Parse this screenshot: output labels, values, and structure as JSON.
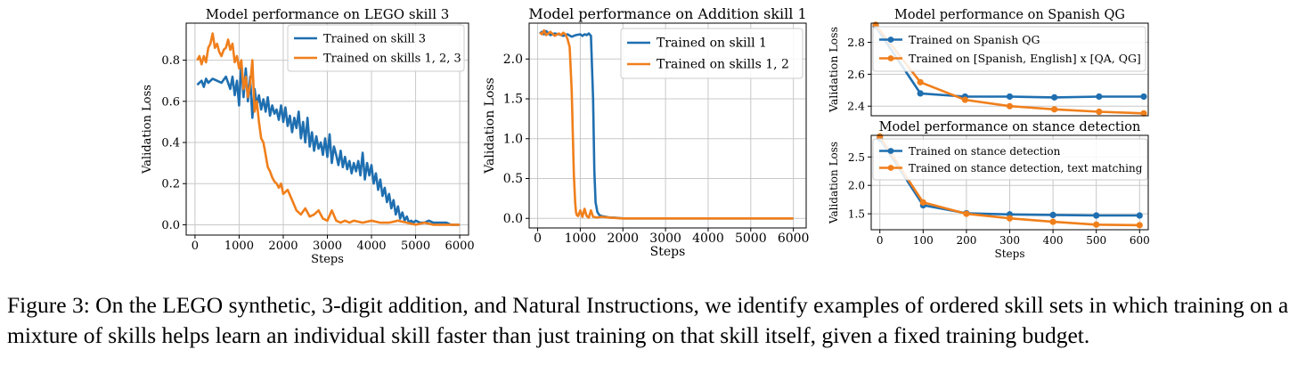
{
  "colors": {
    "blue": "#1f6fb0",
    "orange": "#f07f1b",
    "grid": "#c8c8c8"
  },
  "caption": "Figure 3: On the LEGO synthetic, 3-digit addition, and Natural Instructions, we identify examples of ordered skill sets in which training on a mixture of skills helps learn an individual skill faster than just training on that skill itself, given a fixed training budget.",
  "chart_data": [
    {
      "type": "line",
      "title": "Model performance on LEGO skill 3",
      "xlabel": "Steps",
      "ylabel": "Validation Loss",
      "xlim": [
        -200,
        6200
      ],
      "ylim": [
        -0.05,
        0.98
      ],
      "xticks": [
        0,
        1000,
        2000,
        3000,
        4000,
        5000,
        6000
      ],
      "yticks": [
        0.0,
        0.2,
        0.4,
        0.6,
        0.8
      ],
      "ytick_decimals": 1,
      "grid": true,
      "legend": "upper right",
      "series": [
        {
          "name": "Trained on skill 3",
          "color": "blue",
          "x": [
            50,
            150,
            200,
            250,
            300,
            400,
            500,
            600,
            700,
            800,
            850,
            900,
            950,
            1000,
            1050,
            1100,
            1150,
            1200,
            1250,
            1300,
            1350,
            1400,
            1450,
            1500,
            1550,
            1600,
            1650,
            1700,
            1750,
            1800,
            1850,
            1900,
            1950,
            2000,
            2050,
            2100,
            2150,
            2200,
            2250,
            2300,
            2350,
            2400,
            2450,
            2500,
            2550,
            2600,
            2650,
            2700,
            2750,
            2800,
            2850,
            2900,
            2950,
            3000,
            3050,
            3100,
            3150,
            3200,
            3250,
            3300,
            3350,
            3400,
            3450,
            3500,
            3550,
            3600,
            3650,
            3700,
            3750,
            3800,
            3850,
            3900,
            3950,
            4000,
            4050,
            4100,
            4150,
            4200,
            4250,
            4300,
            4350,
            4400,
            4450,
            4500,
            4550,
            4600,
            4650,
            4700,
            4750,
            4800,
            4850,
            4900,
            4950,
            5000,
            5100,
            5200,
            5300,
            5400,
            5500,
            5600,
            5700,
            5800,
            5900,
            6000
          ],
          "y": [
            0.68,
            0.7,
            0.67,
            0.71,
            0.69,
            0.71,
            0.7,
            0.69,
            0.72,
            0.66,
            0.72,
            0.63,
            0.7,
            0.58,
            0.79,
            0.62,
            0.76,
            0.6,
            0.72,
            0.52,
            0.66,
            0.58,
            0.63,
            0.56,
            0.61,
            0.55,
            0.62,
            0.53,
            0.58,
            0.54,
            0.56,
            0.51,
            0.58,
            0.5,
            0.57,
            0.48,
            0.53,
            0.45,
            0.52,
            0.47,
            0.55,
            0.42,
            0.5,
            0.4,
            0.52,
            0.38,
            0.45,
            0.36,
            0.43,
            0.37,
            0.4,
            0.34,
            0.42,
            0.33,
            0.44,
            0.3,
            0.38,
            0.34,
            0.29,
            0.36,
            0.28,
            0.33,
            0.27,
            0.31,
            0.25,
            0.3,
            0.26,
            0.31,
            0.24,
            0.35,
            0.22,
            0.3,
            0.24,
            0.29,
            0.2,
            0.25,
            0.17,
            0.22,
            0.14,
            0.18,
            0.11,
            0.15,
            0.08,
            0.12,
            0.05,
            0.09,
            0.03,
            0.06,
            0.02,
            0.04,
            0.01,
            0.02,
            0.01,
            0.02,
            0.01,
            0.01,
            0.02,
            0.01,
            0.01,
            0.01,
            0.01,
            0.0,
            0.0,
            0.0
          ]
        },
        {
          "name": "Trained on skills 1, 2, 3",
          "color": "orange",
          "x": [
            50,
            100,
            150,
            200,
            250,
            300,
            350,
            400,
            450,
            500,
            550,
            600,
            650,
            700,
            750,
            800,
            850,
            900,
            950,
            1000,
            1050,
            1100,
            1150,
            1200,
            1250,
            1300,
            1350,
            1400,
            1450,
            1500,
            1550,
            1600,
            1650,
            1700,
            1750,
            1800,
            1850,
            1900,
            1950,
            2000,
            2100,
            2200,
            2300,
            2400,
            2500,
            2600,
            2700,
            2800,
            2900,
            3000,
            3100,
            3200,
            3300,
            3400,
            3500,
            3600,
            3800,
            4000,
            4200,
            4400,
            4600,
            4800,
            5000,
            5200,
            5400,
            5600,
            5800,
            6000
          ],
          "y": [
            0.8,
            0.82,
            0.78,
            0.82,
            0.79,
            0.86,
            0.88,
            0.93,
            0.86,
            0.88,
            0.84,
            0.82,
            0.85,
            0.86,
            0.9,
            0.85,
            0.88,
            0.79,
            0.82,
            0.76,
            0.8,
            0.66,
            0.72,
            0.62,
            0.68,
            0.8,
            0.55,
            0.6,
            0.5,
            0.42,
            0.4,
            0.34,
            0.28,
            0.26,
            0.23,
            0.21,
            0.2,
            0.18,
            0.2,
            0.15,
            0.17,
            0.12,
            0.07,
            0.05,
            0.08,
            0.04,
            0.05,
            0.07,
            0.03,
            0.02,
            0.07,
            0.02,
            0.01,
            0.02,
            0.01,
            0.02,
            0.01,
            0.02,
            0.01,
            0.01,
            0.02,
            0.01,
            0.0,
            0.01,
            0.0,
            0.0,
            0.0,
            0.0
          ]
        }
      ]
    },
    {
      "type": "line",
      "title": "Model performance on Addition skill 1",
      "xlabel": "Steps",
      "ylabel": "Validation Loss",
      "xlim": [
        -200,
        6300
      ],
      "ylim": [
        -0.12,
        2.45
      ],
      "xticks": [
        0,
        1000,
        2000,
        3000,
        4000,
        5000,
        6000
      ],
      "yticks": [
        0.0,
        0.5,
        1.0,
        1.5,
        2.0
      ],
      "ytick_decimals": 1,
      "grid": true,
      "legend": "upper right",
      "series": [
        {
          "name": "Trained on skill 1",
          "color": "blue",
          "x": [
            50,
            100,
            150,
            200,
            300,
            400,
            500,
            600,
            700,
            800,
            900,
            1000,
            1050,
            1100,
            1150,
            1200,
            1250,
            1300,
            1330,
            1360,
            1400,
            1450,
            1500,
            1600,
            1700,
            1800,
            2000,
            3000,
            4000,
            5000,
            6000
          ],
          "y": [
            2.32,
            2.34,
            2.31,
            2.35,
            2.3,
            2.32,
            2.31,
            2.29,
            2.31,
            2.28,
            2.3,
            2.31,
            2.29,
            2.31,
            2.3,
            2.32,
            2.29,
            1.5,
            0.6,
            0.2,
            0.08,
            0.04,
            0.03,
            0.02,
            0.01,
            0.01,
            0.0,
            0.0,
            0.0,
            0.0,
            0.0
          ]
        },
        {
          "name": "Trained on skills 1, 2",
          "color": "orange",
          "x": [
            50,
            100,
            150,
            200,
            300,
            400,
            500,
            550,
            600,
            650,
            700,
            750,
            800,
            850,
            880,
            900,
            920,
            950,
            1000,
            1050,
            1100,
            1150,
            1200,
            1250,
            1300,
            1400,
            1500,
            1700,
            2000,
            3000,
            4000,
            5000,
            6000
          ],
          "y": [
            2.33,
            2.31,
            2.36,
            2.3,
            2.34,
            2.29,
            2.32,
            2.3,
            2.33,
            2.31,
            2.25,
            2.15,
            1.6,
            0.55,
            0.2,
            0.08,
            0.04,
            0.03,
            0.1,
            0.02,
            0.12,
            0.03,
            0.01,
            0.1,
            0.02,
            0.01,
            0.02,
            0.01,
            0.0,
            0.0,
            0.0,
            0.0,
            0.0
          ]
        }
      ]
    },
    {
      "type": "line",
      "title": "Model performance on Spanish QG",
      "xlabel": "",
      "ylabel": "Validation Loss",
      "xlim": [
        -10,
        610
      ],
      "ylim": [
        2.34,
        2.92
      ],
      "xticks": [],
      "yticks": [
        2.4,
        2.6,
        2.8
      ],
      "ytick_decimals": 1,
      "grid": true,
      "legend": "upper right",
      "series": [
        {
          "name": "Trained on Spanish QG",
          "color": "blue",
          "marker": true,
          "x": [
            0,
            100,
            200,
            300,
            400,
            500,
            600
          ],
          "y": [
            2.9,
            2.48,
            2.46,
            2.46,
            2.455,
            2.46,
            2.46
          ]
        },
        {
          "name": "Trained on [Spanish, English] x [QA, QG]",
          "color": "orange",
          "marker": true,
          "x": [
            0,
            100,
            200,
            300,
            400,
            500,
            600
          ],
          "y": [
            2.91,
            2.55,
            2.44,
            2.4,
            2.38,
            2.365,
            2.355
          ]
        }
      ]
    },
    {
      "type": "line",
      "title": "Model performance on stance detection",
      "xlabel": "Steps",
      "ylabel": "Validation Loss",
      "xlim": [
        -20,
        620
      ],
      "ylim": [
        1.22,
        2.88
      ],
      "xticks": [
        0,
        100,
        200,
        300,
        400,
        500,
        600
      ],
      "yticks": [
        1.5,
        2.0,
        2.5
      ],
      "ytick_decimals": 1,
      "grid": true,
      "legend": "upper right",
      "series": [
        {
          "name": "Trained on stance detection",
          "color": "blue",
          "marker": true,
          "x": [
            0,
            100,
            200,
            300,
            400,
            500,
            600
          ],
          "y": [
            2.82,
            1.65,
            1.51,
            1.49,
            1.48,
            1.47,
            1.47
          ]
        },
        {
          "name": "Trained on stance detection, text matching",
          "color": "orange",
          "marker": true,
          "x": [
            0,
            100,
            200,
            300,
            400,
            500,
            600
          ],
          "y": [
            2.86,
            1.7,
            1.5,
            1.42,
            1.36,
            1.31,
            1.3
          ]
        }
      ]
    }
  ]
}
